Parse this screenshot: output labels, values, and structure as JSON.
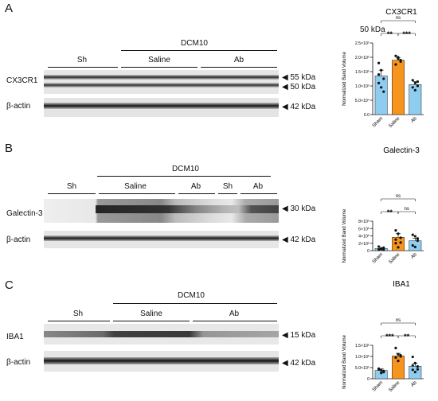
{
  "panels": [
    {
      "letter": "A",
      "condition_label": "DCM10",
      "groups": [
        "Sh",
        "Saline",
        "Ab"
      ],
      "rows": [
        {
          "label": "CX3CR1",
          "markers": [
            "55 kDa",
            "50 kDa"
          ]
        },
        {
          "label": "β-actin",
          "markers": [
            "42 kDa"
          ]
        }
      ],
      "extra_text": "50 kDa"
    },
    {
      "letter": "B",
      "condition_label": "DCM10",
      "groups": [
        "Sh",
        "Saline",
        "Ab",
        "Sh",
        "Ab"
      ],
      "rows": [
        {
          "label": "Galectin-3",
          "markers": [
            "30 kDa"
          ]
        },
        {
          "label": "β-actin",
          "markers": [
            "42 kDa"
          ]
        }
      ]
    },
    {
      "letter": "C",
      "condition_label": "DCM10",
      "groups": [
        "Sh",
        "Saline",
        "Ab"
      ],
      "rows": [
        {
          "label": "IBA1",
          "markers": [
            "15 kDa"
          ]
        },
        {
          "label": "β-actin",
          "markers": [
            "42 kDa"
          ]
        }
      ]
    }
  ],
  "chart_data": [
    {
      "type": "bar",
      "title": "CX3CR1",
      "ylabel": "Normalized Band Volume",
      "categories": [
        "Sham",
        "Saline",
        "Ab"
      ],
      "values": [
        135000,
        190000,
        105000
      ],
      "errors": [
        20000,
        8000,
        10000
      ],
      "ylim": [
        0,
        250000
      ],
      "yticks": [
        "0.0",
        "5.0×10⁴",
        "1.0×10⁵",
        "1.5×10⁵",
        "2.0×10⁵",
        "2.5×10⁵"
      ],
      "points": [
        [
          180000,
          155000,
          125000,
          110000,
          95000,
          80000,
          140000
        ],
        [
          205000,
          195000,
          185000,
          175000,
          200000,
          190000
        ],
        [
          120000,
          110000,
          100000,
          95000,
          85000,
          115000
        ]
      ],
      "significance": [
        {
          "pair": [
            "Sham",
            "Saline"
          ],
          "label": "**",
          "level": 0
        },
        {
          "pair": [
            "Saline",
            "Ab"
          ],
          "label": "***",
          "level": 0
        },
        {
          "pair": [
            "Sham",
            "Ab"
          ],
          "label": "ns",
          "level": 1
        }
      ],
      "bar_colors": [
        "#8fcdf0",
        "#f7941d",
        "#8fcdf0"
      ]
    },
    {
      "type": "bar",
      "title": "Galectin-3",
      "ylabel": "Normalized Band Volume",
      "categories": [
        "Sham",
        "Saline",
        "Ab"
      ],
      "values": [
        600000,
        3600000,
        2700000
      ],
      "errors": [
        250000,
        1000000,
        650000
      ],
      "ylim": [
        0,
        8000000
      ],
      "yticks": [
        "0",
        "2×10⁶",
        "4×10⁶",
        "6×10⁶",
        "8×10⁶"
      ],
      "points": [
        [
          300000,
          500000,
          800000,
          1100000,
          400000,
          250000
        ],
        [
          5500000,
          4600000,
          3500000,
          2000000,
          900000,
          2200000,
          3000000
        ],
        [
          4300000,
          3900000,
          2700000,
          1400000,
          1000000,
          3300000
        ]
      ],
      "significance": [
        {
          "pair": [
            "Sham",
            "Saline"
          ],
          "label": "**",
          "level": 0
        },
        {
          "pair": [
            "Saline",
            "Ab"
          ],
          "label": "ns",
          "level": 0
        },
        {
          "pair": [
            "Sham",
            "Ab"
          ],
          "label": "ns",
          "level": 1
        }
      ],
      "bar_colors": [
        "#8fcdf0",
        "#f7941d",
        "#8fcdf0"
      ]
    },
    {
      "type": "bar",
      "title": "IBA1",
      "ylabel": "Normalized Band Volume",
      "categories": [
        "Sham",
        "Saline",
        "Ab"
      ],
      "values": [
        370000,
        1020000,
        560000
      ],
      "errors": [
        70000,
        120000,
        130000
      ],
      "ylim": [
        0,
        1500000
      ],
      "yticks": [
        "0",
        "5.0×10⁵",
        "1.0×10⁶",
        "1.5×10⁶"
      ],
      "points": [
        [
          420000,
          380000,
          300000,
          450000,
          260000,
          350000
        ],
        [
          1380000,
          1100000,
          1000000,
          950000,
          800000,
          1050000
        ],
        [
          980000,
          700000,
          550000,
          400000,
          300000,
          420000,
          600000
        ]
      ],
      "significance": [
        {
          "pair": [
            "Sham",
            "Saline"
          ],
          "label": "***",
          "level": 0
        },
        {
          "pair": [
            "Saline",
            "Ab"
          ],
          "label": "**",
          "level": 0
        },
        {
          "pair": [
            "Sham",
            "Ab"
          ],
          "label": "ns",
          "level": 1
        }
      ],
      "bar_colors": [
        "#8fcdf0",
        "#f7941d",
        "#8fcdf0"
      ]
    }
  ]
}
